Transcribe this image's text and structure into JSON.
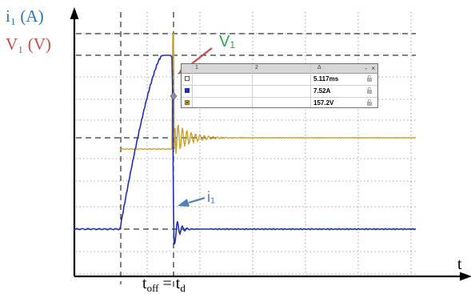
{
  "chart_data": {
    "type": "line",
    "y_axis_labels": [
      "i₁ (A)",
      "V₁ (V)"
    ],
    "x_axis_label": "t",
    "series_labels": {
      "voltage": "V₁",
      "current": "i₁"
    },
    "t_label_main": "t",
    "t_label_sub": "off",
    "t_label_eq": " = t",
    "t_label_sub2": "d",
    "grid": true,
    "gridlines": "dotted",
    "series": [
      {
        "name": "V₁",
        "color": "#c9a227"
      },
      {
        "name": "i₁",
        "color": "#1f2fb8"
      }
    ],
    "cursor_readout": {
      "header_cols": [
        "1",
        "2",
        "Δ"
      ],
      "rows": [
        {
          "value": "5.117ms",
          "swatch": "#ffffff"
        },
        {
          "value": "7.52A",
          "swatch": "#1f2fb8"
        },
        {
          "value": "157.2V",
          "swatch": "#c9a227"
        }
      ]
    },
    "colors": {
      "label_i": "#2e75b6",
      "label_v": "#c0504d",
      "label_v1": "#2aa84a",
      "arrow_red": "#c0504d",
      "arrow_blue": "#4f81bd",
      "axis": "#000000",
      "dashed": "#000000"
    }
  }
}
